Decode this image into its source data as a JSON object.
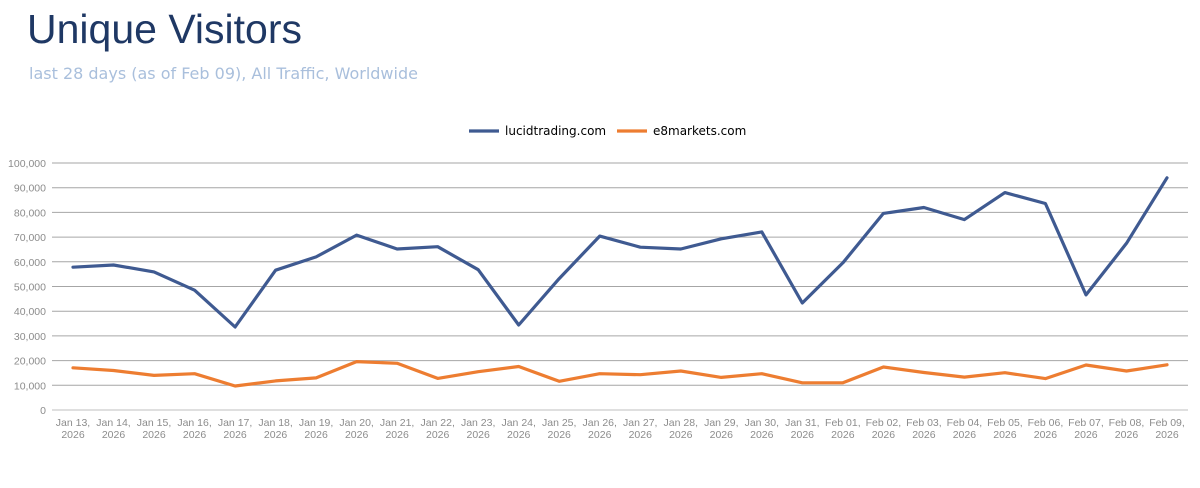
{
  "header": {
    "title": "Unique Visitors",
    "subtitle": "last 28 days (as of Feb 09), All Traffic, Worldwide"
  },
  "chart_data": {
    "type": "line",
    "title": "Unique Visitors",
    "subtitle": "last 28 days (as of Feb 09), All Traffic, Worldwide",
    "xlabel": "",
    "ylabel": "",
    "ylim": [
      0,
      100000
    ],
    "y_ticks": [
      "0",
      "10,000",
      "20,000",
      "30,000",
      "40,000",
      "50,000",
      "60,000",
      "70,000",
      "80,000",
      "90,000",
      "100,000"
    ],
    "y_tick_values": [
      0,
      10000,
      20000,
      30000,
      40000,
      50000,
      60000,
      70000,
      80000,
      90000,
      100000
    ],
    "grid": true,
    "legend_position": "top-center",
    "categories": [
      [
        "Jan 13,",
        "2026"
      ],
      [
        "Jan 14,",
        "2026"
      ],
      [
        "Jan 15,",
        "2026"
      ],
      [
        "Jan 16,",
        "2026"
      ],
      [
        "Jan 17,",
        "2026"
      ],
      [
        "Jan 18,",
        "2026"
      ],
      [
        "Jan 19,",
        "2026"
      ],
      [
        "Jan 20,",
        "2026"
      ],
      [
        "Jan 21,",
        "2026"
      ],
      [
        "Jan 22,",
        "2026"
      ],
      [
        "Jan 23,",
        "2026"
      ],
      [
        "Jan 24,",
        "2026"
      ],
      [
        "Jan 25,",
        "2026"
      ],
      [
        "Jan 26,",
        "2026"
      ],
      [
        "Jan 27,",
        "2026"
      ],
      [
        "Jan 28,",
        "2026"
      ],
      [
        "Jan 29,",
        "2026"
      ],
      [
        "Jan 30,",
        "2026"
      ],
      [
        "Jan 31,",
        "2026"
      ],
      [
        "Feb 01,",
        "2026"
      ],
      [
        "Feb 02,",
        "2026"
      ],
      [
        "Feb 03,",
        "2026"
      ],
      [
        "Feb 04,",
        "2026"
      ],
      [
        "Feb 05,",
        "2026"
      ],
      [
        "Feb 06,",
        "2026"
      ],
      [
        "Feb 07,",
        "2026"
      ],
      [
        "Feb 08,",
        "2026"
      ],
      [
        "Feb 09,",
        "2026"
      ]
    ],
    "series": [
      {
        "name": "lucidtrading.com",
        "color": "#3f5a91",
        "values": [
          57800,
          58700,
          55900,
          48500,
          33600,
          56600,
          62000,
          70800,
          65200,
          66100,
          56800,
          34400,
          53200,
          70400,
          65900,
          65200,
          69300,
          72100,
          43300,
          59600,
          79600,
          82000,
          77100,
          88000,
          83600,
          46600,
          67500,
          94000
        ]
      },
      {
        "name": "e8markets.com",
        "color": "#ed7d31",
        "values": [
          17100,
          16000,
          14000,
          14700,
          9700,
          11800,
          13000,
          19600,
          18900,
          12800,
          15500,
          17600,
          11600,
          14700,
          14300,
          15800,
          13200,
          14700,
          11000,
          11000,
          17400,
          15200,
          13300,
          15100,
          12700,
          18200,
          15800,
          18300
        ]
      }
    ]
  }
}
